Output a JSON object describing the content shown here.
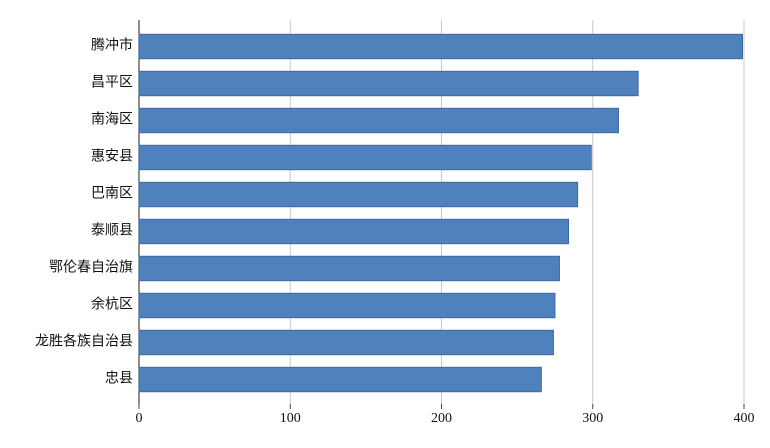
{
  "chart_data": {
    "type": "bar",
    "orientation": "horizontal",
    "categories": [
      "腾冲市",
      "昌平区",
      "南海区",
      "惠安县",
      "巴南区",
      "泰顺县",
      "鄂伦春自治旗",
      "余杭区",
      "龙胜各族自治县",
      "忠县"
    ],
    "values": [
      399,
      330,
      317,
      299,
      290,
      284,
      278,
      275,
      274,
      266
    ],
    "color": "#4f81bd",
    "xlim": [
      0,
      400
    ],
    "xticks": [
      0,
      100,
      200,
      300,
      400
    ],
    "grid": true
  }
}
